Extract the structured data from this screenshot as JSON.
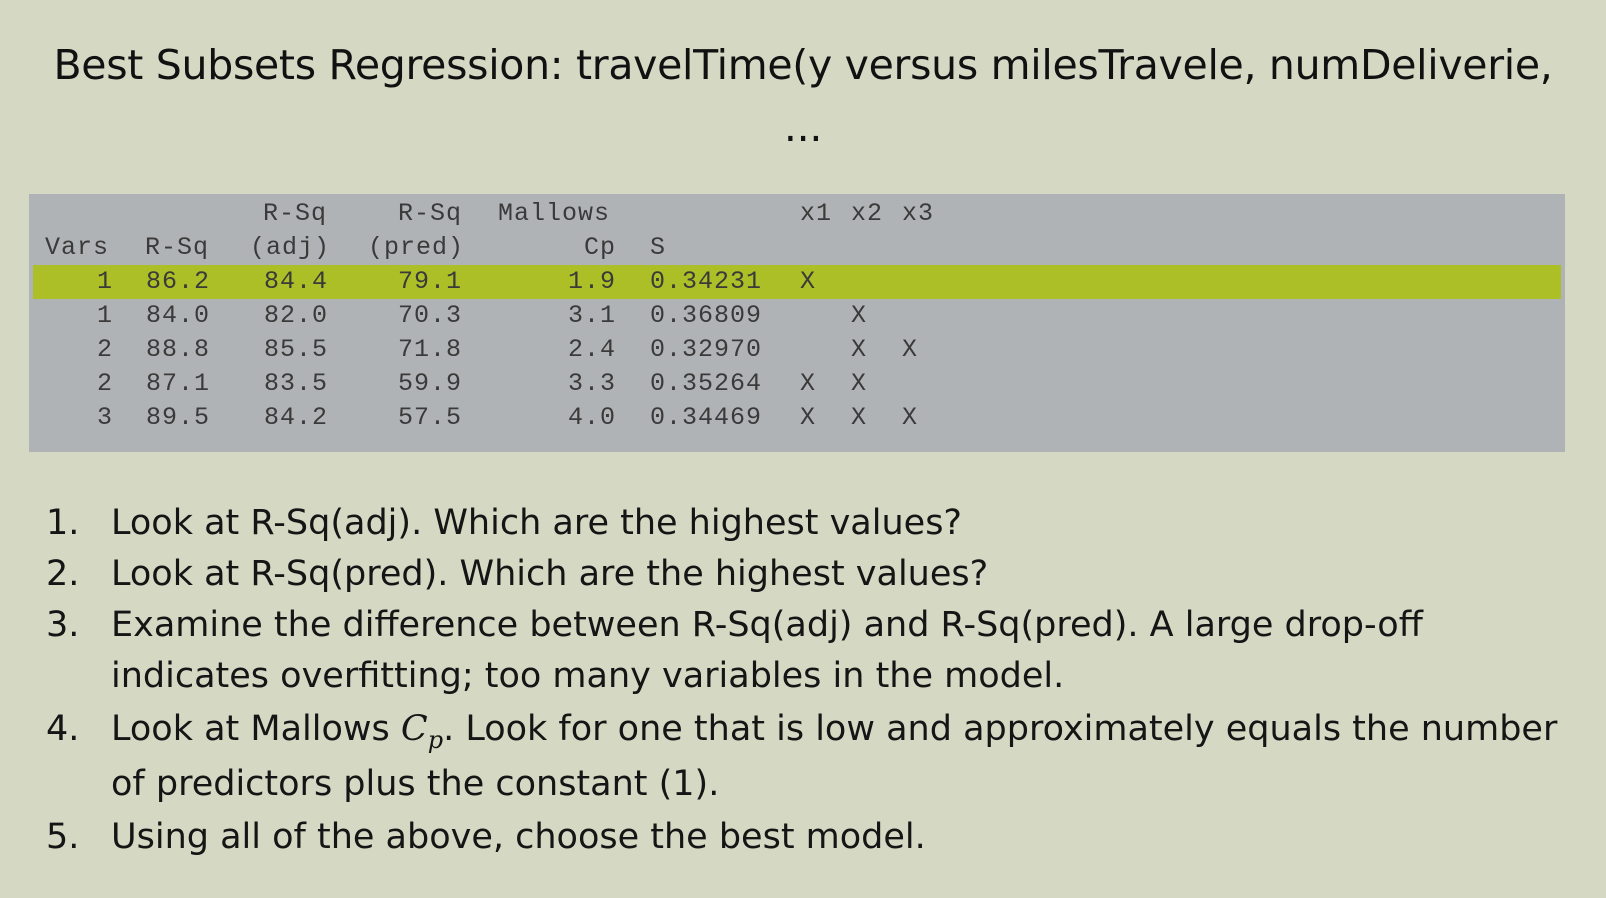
{
  "title": "Best Subsets Regression: travelTime(y versus milesTravele, numDeliverie,",
  "title_cont": "...",
  "table": {
    "header_row1": {
      "rsq_adj": "R-Sq",
      "rsq_pred": "R-Sq",
      "mallows": "Mallows",
      "x1": "x1",
      "x2": "x2",
      "x3": "x3"
    },
    "header_row2": {
      "vars": "Vars",
      "rsq": "R-Sq",
      "rsq_adj": "(adj)",
      "rsq_pred": "(pred)",
      "cp": "Cp",
      "s": "S"
    },
    "rows": [
      {
        "vars": "1",
        "rsq": "86.2",
        "rsq_adj": "84.4",
        "rsq_pred": "79.1",
        "cp": "1.9",
        "s": "0.34231",
        "x1": "X",
        "x2": "",
        "x3": "",
        "highlighted": true
      },
      {
        "vars": "1",
        "rsq": "84.0",
        "rsq_adj": "82.0",
        "rsq_pred": "70.3",
        "cp": "3.1",
        "s": "0.36809",
        "x1": "",
        "x2": "X",
        "x3": "",
        "highlighted": false
      },
      {
        "vars": "2",
        "rsq": "88.8",
        "rsq_adj": "85.5",
        "rsq_pred": "71.8",
        "cp": "2.4",
        "s": "0.32970",
        "x1": "",
        "x2": "X",
        "x3": "X",
        "highlighted": false
      },
      {
        "vars": "2",
        "rsq": "87.1",
        "rsq_adj": "83.5",
        "rsq_pred": "59.9",
        "cp": "3.3",
        "s": "0.35264",
        "x1": "X",
        "x2": "X",
        "x3": "",
        "highlighted": false
      },
      {
        "vars": "3",
        "rsq": "89.5",
        "rsq_adj": "84.2",
        "rsq_pred": "57.5",
        "cp": "4.0",
        "s": "0.34469",
        "x1": "X",
        "x2": "X",
        "x3": "X",
        "highlighted": false
      }
    ]
  },
  "steps": [
    {
      "num": "1.",
      "text": "Look at R-Sq(adj). Which are the highest values?"
    },
    {
      "num": "2.",
      "text": "Look at R-Sq(pred). Which are the highest values?"
    },
    {
      "num": "3.",
      "text": "Examine the difference between R-Sq(adj) and R-Sq(pred). A large drop-off indicates overfitting; too many variables in the model."
    },
    {
      "num": "4.",
      "text_before": "Look at Mallows ",
      "math_base": "C",
      "math_sub": "p",
      "text_after": ". Look for one that is low and approximately equals the number of predictors plus the constant (1)."
    },
    {
      "num": "5.",
      "text": "Using all of the above, choose the best model."
    }
  ],
  "colors": {
    "background": "#d5d9c4",
    "table_background": "#b0b3b5",
    "highlight": "#adbf26"
  }
}
